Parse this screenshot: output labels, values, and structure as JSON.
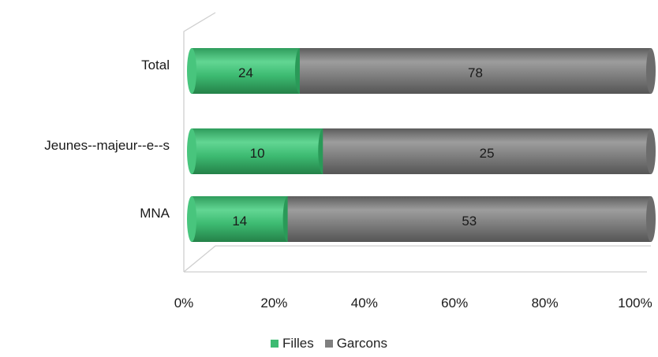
{
  "chart_data": {
    "type": "bar",
    "orientation": "horizontal",
    "stacking": "percent",
    "categories": [
      "Total",
      "Jeunes--majeur--e--s",
      "MNA"
    ],
    "series": [
      {
        "name": "Filles",
        "values": [
          24,
          10,
          14
        ],
        "color": "#3dbb72"
      },
      {
        "name": "Garcons",
        "values": [
          78,
          25,
          53
        ],
        "color": "#7f7f7f"
      }
    ],
    "xaxis": {
      "ticks": [
        0,
        20,
        40,
        60,
        80,
        100
      ],
      "tick_labels": [
        "0%",
        "20%",
        "40%",
        "60%",
        "80%",
        "100%"
      ],
      "range": [
        0,
        100
      ]
    },
    "legend_position": "bottom",
    "grid": false,
    "style": "3d-cylinder"
  }
}
